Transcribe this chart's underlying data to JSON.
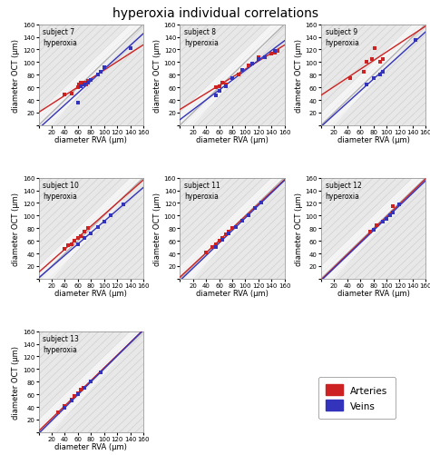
{
  "title": "hyperoxia individual correlations",
  "subjects": [
    {
      "label": "subject 7\nhyperoxia",
      "arteries_rva": [
        40,
        50,
        60,
        62,
        65,
        68,
        70,
        72,
        75
      ],
      "arteries_oct": [
        48,
        50,
        60,
        65,
        68,
        65,
        68,
        65,
        70
      ],
      "veins_rva": [
        60,
        65,
        70,
        75,
        80,
        90,
        95,
        100,
        140
      ],
      "veins_oct": [
        35,
        62,
        65,
        68,
        72,
        80,
        85,
        92,
        122
      ]
    },
    {
      "label": "subject 8\nhyperoxia",
      "arteries_rva": [
        55,
        60,
        65,
        70,
        90,
        95,
        105,
        120,
        140,
        145,
        150
      ],
      "arteries_oct": [
        60,
        62,
        68,
        65,
        80,
        88,
        95,
        108,
        113,
        115,
        118
      ],
      "veins_rva": [
        55,
        60,
        70,
        80,
        95,
        110,
        120,
        130,
        145
      ],
      "veins_oct": [
        47,
        55,
        62,
        75,
        88,
        97,
        105,
        108,
        118
      ]
    },
    {
      "label": "subject 9\nhyperoxia",
      "arteries_rva": [
        45,
        65,
        70,
        78,
        82,
        90,
        95
      ],
      "arteries_oct": [
        75,
        85,
        100,
        105,
        122,
        100,
        105
      ],
      "veins_rva": [
        70,
        80,
        90,
        95,
        145
      ],
      "veins_oct": [
        65,
        75,
        80,
        85,
        135
      ]
    },
    {
      "label": "subject 10\nhyperoxia",
      "arteries_rva": [
        40,
        45,
        50,
        55,
        60,
        65,
        70,
        75
      ],
      "arteries_oct": [
        47,
        53,
        55,
        60,
        64,
        68,
        75,
        80
      ],
      "veins_rva": [
        60,
        70,
        80,
        90,
        100,
        110,
        130
      ],
      "veins_oct": [
        55,
        65,
        72,
        82,
        90,
        100,
        118
      ]
    },
    {
      "label": "subject 11\nhyperoxia",
      "arteries_rva": [
        40,
        50,
        55,
        60,
        65,
        70,
        75,
        80
      ],
      "arteries_oct": [
        42,
        50,
        55,
        60,
        65,
        70,
        75,
        80
      ],
      "veins_rva": [
        55,
        65,
        75,
        85,
        95,
        105,
        115,
        125
      ],
      "veins_oct": [
        50,
        62,
        72,
        82,
        92,
        100,
        112,
        120
      ]
    },
    {
      "label": "subject 12\nhyperoxia",
      "arteries_rva": [
        75,
        85,
        95,
        100,
        105,
        110
      ],
      "arteries_oct": [
        75,
        85,
        90,
        95,
        100,
        115
      ],
      "veins_rva": [
        80,
        95,
        100,
        105,
        110,
        120
      ],
      "veins_oct": [
        78,
        90,
        95,
        100,
        105,
        118
      ]
    },
    {
      "label": "subject 13\nhyperoxia",
      "arteries_rva": [
        30,
        40,
        50,
        55,
        60,
        65,
        68
      ],
      "arteries_oct": [
        32,
        42,
        52,
        57,
        62,
        67,
        70
      ],
      "veins_rva": [
        40,
        50,
        60,
        70,
        80,
        95
      ],
      "veins_oct": [
        38,
        50,
        60,
        70,
        80,
        95
      ]
    }
  ],
  "xlim": [
    0,
    160
  ],
  "ylim": [
    0,
    160
  ],
  "xticks": [
    0,
    20,
    40,
    60,
    80,
    100,
    120,
    140,
    160
  ],
  "yticks": [
    0,
    20,
    40,
    60,
    80,
    100,
    120,
    140,
    160
  ],
  "xlabel": "diameter RVA (μm)",
  "ylabel": "diameter OCT (μm)",
  "art_color": "#cc2222",
  "vein_color": "#3333bb",
  "identity_color": "#aaaaaa",
  "bg_color": "#e8e8e8",
  "title_fontsize": 10,
  "label_fontsize": 6,
  "tick_fontsize": 5,
  "subject_fontsize": 5.5,
  "legend_art_label": "Arteries",
  "legend_vein_label": "Veins"
}
